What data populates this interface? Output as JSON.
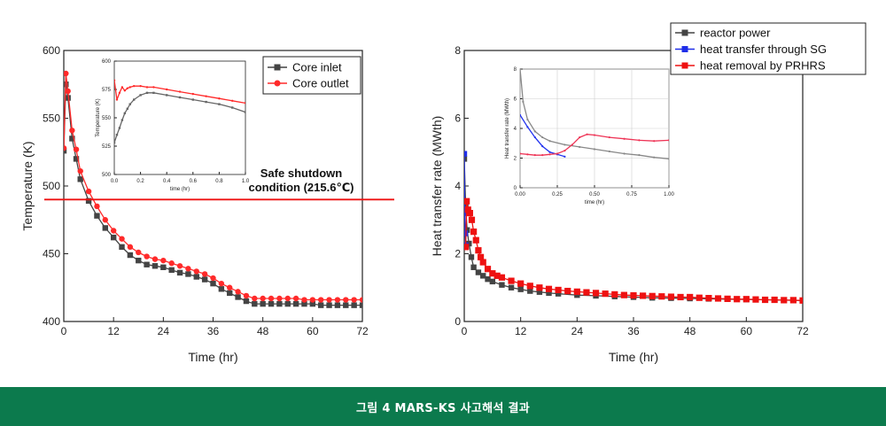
{
  "caption": "그림 4 MARS-KS 사고해석 결과",
  "chart_data": [
    {
      "type": "line",
      "xlabel": "Time (hr)",
      "ylabel": "Temperature (K)",
      "xlim": [
        0,
        72
      ],
      "ylim": [
        400,
        600
      ],
      "xticks": [
        "0",
        "12",
        "24",
        "36",
        "48",
        "60",
        "72"
      ],
      "yticks": [
        "400",
        "450",
        "500",
        "550",
        "600"
      ],
      "legend_position": "top-right",
      "annotation": {
        "line1": "Safe shutdown",
        "line2": "condition (215.6℃)",
        "threshold": 490
      },
      "x": [
        0,
        0.5,
        1,
        2,
        3,
        4,
        6,
        8,
        10,
        12,
        14,
        16,
        18,
        20,
        22,
        24,
        26,
        28,
        30,
        32,
        34,
        36,
        38,
        40,
        42,
        44,
        46,
        48,
        50,
        52,
        54,
        56,
        58,
        60,
        62,
        64,
        66,
        68,
        70,
        72
      ],
      "series": [
        {
          "name": "Core inlet",
          "color": "#444444",
          "values": [
            526,
            575,
            565,
            535,
            520,
            505,
            489,
            478,
            469,
            462,
            455,
            449,
            445,
            442,
            441,
            440,
            438,
            436,
            435,
            433,
            431,
            428,
            424,
            421,
            418,
            415,
            413,
            413,
            413,
            413,
            413,
            413,
            413,
            413,
            412,
            412,
            412,
            412,
            412,
            412
          ]
        },
        {
          "name": "Core outlet",
          "color": "#ff2a2a",
          "values": [
            528,
            583,
            570,
            541,
            527,
            511,
            496,
            485,
            475,
            467,
            461,
            455,
            451,
            448,
            446,
            445,
            443,
            441,
            439,
            437,
            435,
            432,
            428,
            425,
            422,
            419,
            417,
            417,
            417,
            417,
            417,
            417,
            416,
            416,
            416,
            416,
            416,
            416,
            416,
            416
          ]
        }
      ],
      "inset": {
        "xlabel": "time (hr)",
        "ylabel": "Temperature (K)",
        "xlim": [
          0,
          1
        ],
        "ylim": [
          500,
          600
        ],
        "xticks": [
          "0.0",
          "0.2",
          "0.4",
          "0.6",
          "0.8",
          "1.0"
        ],
        "yticks": [
          "500",
          "525",
          "550",
          "575",
          "600"
        ],
        "x": [
          0,
          0.02,
          0.04,
          0.06,
          0.08,
          0.1,
          0.12,
          0.15,
          0.2,
          0.25,
          0.3,
          0.4,
          0.5,
          0.6,
          0.7,
          0.8,
          0.9,
          1.0
        ],
        "series": [
          {
            "name": "Core inlet",
            "values": [
              528,
              535,
              541,
              548,
              554,
              558,
              562,
              566,
              570,
              572,
              572,
              570,
              568,
              566,
              564,
              562,
              559,
              555
            ]
          },
          {
            "name": "Core outlet",
            "values": [
              583,
              566,
              572,
              577,
              574,
              576,
              577,
              578,
              578,
              577,
              577,
              575,
              573,
              571,
              569,
              567,
              565,
              563
            ]
          }
        ]
      }
    },
    {
      "type": "line",
      "xlabel": "Time (hr)",
      "ylabel": "Heat transfer rate (MWth)",
      "xlim": [
        0,
        72
      ],
      "ylim": [
        0,
        8
      ],
      "xticks": [
        "0",
        "12",
        "24",
        "36",
        "48",
        "60",
        "72"
      ],
      "yticks": [
        "0",
        "2",
        "4",
        "6",
        "8"
      ],
      "legend_position": "top-right",
      "series": [
        {
          "name": "reactor power",
          "color": "#444444",
          "x": [
            0,
            0.3,
            0.6,
            1,
            1.5,
            2,
            3,
            4,
            5,
            6,
            8,
            10,
            12,
            14,
            16,
            18,
            20,
            24,
            28,
            32,
            36,
            40,
            44,
            48,
            52,
            56,
            60,
            64,
            68,
            72
          ],
          "values": [
            4.8,
            3.4,
            2.7,
            2.3,
            1.9,
            1.6,
            1.45,
            1.35,
            1.25,
            1.18,
            1.08,
            1.0,
            0.95,
            0.9,
            0.87,
            0.84,
            0.82,
            0.78,
            0.76,
            0.74,
            0.72,
            0.7,
            0.69,
            0.68,
            0.67,
            0.66,
            0.65,
            0.64,
            0.63,
            0.62
          ]
        },
        {
          "name": "heat transfer through SG",
          "color": "#1f2ee8",
          "x": [
            0,
            0.1,
            0.2,
            0.3
          ],
          "values": [
            4.95,
            3.2,
            2.6,
            2.25
          ]
        },
        {
          "name": "heat removal by PRHRS",
          "color": "#ee1111",
          "x": [
            0.3,
            0.5,
            0.8,
            1.2,
            1.6,
            2,
            2.5,
            3,
            3.5,
            4,
            5,
            6,
            7,
            8,
            10,
            12,
            14,
            16,
            18,
            20,
            22,
            24,
            26,
            28,
            30,
            32,
            34,
            36,
            38,
            40,
            42,
            44,
            46,
            48,
            50,
            52,
            54,
            56,
            58,
            60,
            62,
            64,
            66,
            68,
            70,
            72
          ],
          "values": [
            2.2,
            3.55,
            3.3,
            3.2,
            3.0,
            2.65,
            2.4,
            2.1,
            1.9,
            1.75,
            1.55,
            1.42,
            1.35,
            1.3,
            1.2,
            1.12,
            1.05,
            1.0,
            0.96,
            0.93,
            0.9,
            0.88,
            0.86,
            0.84,
            0.82,
            0.8,
            0.78,
            0.77,
            0.76,
            0.75,
            0.74,
            0.73,
            0.72,
            0.72,
            0.7,
            0.69,
            0.68,
            0.67,
            0.66,
            0.66,
            0.65,
            0.64,
            0.64,
            0.63,
            0.63,
            0.62
          ]
        }
      ],
      "inset": {
        "xlabel": "time (hr)",
        "ylabel": "Heat transfer rate (MWth)",
        "xlim": [
          0,
          1
        ],
        "ylim": [
          0,
          8
        ],
        "xticks": [
          "0.00",
          "0.25",
          "0.50",
          "0.75",
          "1.00"
        ],
        "yticks": [
          "0",
          "2",
          "4",
          "6",
          "8"
        ],
        "series": [
          {
            "name": "reactor power",
            "x": [
              0,
              0.02,
              0.05,
              0.1,
              0.15,
              0.2,
              0.3,
              0.4,
              0.5,
              0.6,
              0.7,
              0.8,
              0.9,
              1.0
            ],
            "values": [
              8.0,
              5.8,
              4.6,
              3.8,
              3.4,
              3.15,
              2.9,
              2.75,
              2.6,
              2.45,
              2.3,
              2.2,
              2.05,
              1.95
            ]
          },
          {
            "name": "heat transfer through SG",
            "x": [
              0,
              0.05,
              0.1,
              0.15,
              0.2,
              0.25,
              0.3
            ],
            "values": [
              4.9,
              4.1,
              3.4,
              2.8,
              2.4,
              2.25,
              2.1
            ]
          },
          {
            "name": "heat removal by PRHRS",
            "x": [
              0,
              0.05,
              0.1,
              0.15,
              0.2,
              0.25,
              0.3,
              0.35,
              0.4,
              0.45,
              0.5,
              0.6,
              0.7,
              0.8,
              0.9,
              1.0
            ],
            "values": [
              2.3,
              2.25,
              2.2,
              2.2,
              2.25,
              2.3,
              2.5,
              2.9,
              3.4,
              3.6,
              3.55,
              3.4,
              3.3,
              3.2,
              3.15,
              3.2
            ]
          }
        ]
      }
    }
  ]
}
